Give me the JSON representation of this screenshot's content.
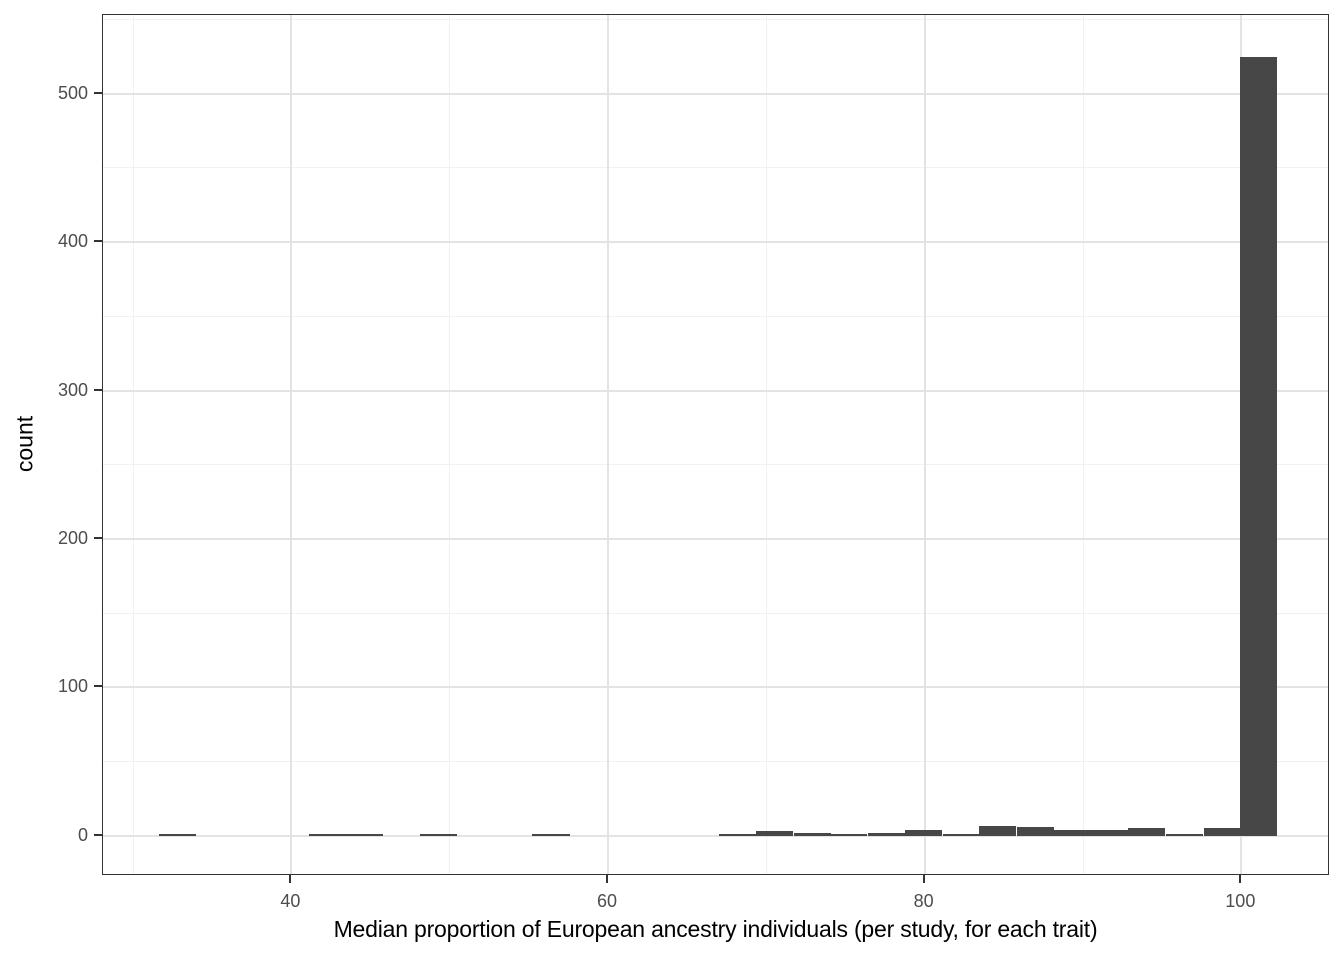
{
  "chart_data": {
    "type": "bar",
    "subtype": "histogram",
    "title": "",
    "xlabel": "Median proportion of European ancestry individuals (per study, for each trait)",
    "ylabel": "count",
    "legend_position": "none",
    "grid": true,
    "bin_width": 2.35,
    "bin_centers": [
      32.8,
      35.2,
      37.5,
      39.9,
      42.3,
      44.6,
      47.0,
      49.3,
      51.7,
      54.0,
      56.4,
      58.7,
      61.1,
      63.4,
      65.8,
      68.2,
      70.5,
      72.9,
      75.2,
      77.6,
      79.9,
      82.3,
      84.6,
      87.0,
      89.3,
      91.7,
      94.0,
      96.4,
      98.8,
      101.1
    ],
    "counts": [
      1,
      0,
      0,
      0,
      1,
      1,
      0,
      1,
      0,
      0,
      1,
      0,
      0,
      0,
      0,
      1,
      3,
      2,
      1,
      2,
      4,
      1,
      7,
      6,
      4,
      4,
      5,
      1,
      5,
      525
    ],
    "x_axis": {
      "tick_labels": [
        "40",
        "60",
        "80",
        "100"
      ],
      "ticks": [
        40,
        60,
        80,
        100
      ],
      "minor_ticks": [
        30,
        50,
        70,
        90
      ],
      "lim": [
        28.1,
        105.6
      ]
    },
    "y_axis": {
      "tick_labels": [
        "0",
        "100",
        "200",
        "300",
        "400",
        "500"
      ],
      "ticks": [
        0,
        100,
        200,
        300,
        400,
        500
      ],
      "minor_ticks": [
        50,
        150,
        250,
        350,
        450,
        550
      ],
      "lim": [
        -27,
        553
      ]
    }
  },
  "colors": {
    "bar_fill": "#474747",
    "panel_border": "#333333",
    "grid_major": "#e3e3e3",
    "grid_minor": "#f1f1f1",
    "tick_mark": "#333333",
    "tick_label": "#4d4d4d",
    "axis_title": "#000000",
    "background": "#ffffff"
  }
}
